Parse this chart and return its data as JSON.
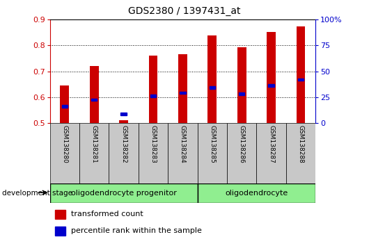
{
  "title": "GDS2380 / 1397431_at",
  "samples": [
    "GSM138280",
    "GSM138281",
    "GSM138282",
    "GSM138283",
    "GSM138284",
    "GSM138285",
    "GSM138286",
    "GSM138287",
    "GSM138288"
  ],
  "bar_tops": [
    0.645,
    0.72,
    0.51,
    0.76,
    0.767,
    0.838,
    0.793,
    0.853,
    0.875
  ],
  "bar_bottom": 0.5,
  "percentile_values": [
    0.565,
    0.59,
    0.535,
    0.605,
    0.617,
    0.638,
    0.613,
    0.645,
    0.668
  ],
  "ylim_left": [
    0.5,
    0.9
  ],
  "ylim_right": [
    0,
    100
  ],
  "yticks_left": [
    0.5,
    0.6,
    0.7,
    0.8,
    0.9
  ],
  "yticks_right": [
    0,
    25,
    50,
    75,
    100
  ],
  "ytick_labels_right": [
    "0",
    "25",
    "50",
    "75",
    "100%"
  ],
  "bar_color": "#CC0000",
  "percentile_color": "#0000CC",
  "grid_ticks": [
    0.6,
    0.7,
    0.8
  ],
  "groups": [
    {
      "label": "oligodendrocyte progenitor",
      "start": 0,
      "end": 5,
      "color": "#90EE90"
    },
    {
      "label": "oligodendrocyte",
      "start": 5,
      "end": 9,
      "color": "#90EE90"
    }
  ],
  "legend_items": [
    {
      "label": "transformed count",
      "color": "#CC0000"
    },
    {
      "label": "percentile rank within the sample",
      "color": "#0000CC"
    }
  ],
  "dev_stage_label": "development stage",
  "sample_area_color": "#C8C8C8",
  "title_color": "#000000",
  "left_axis_color": "#CC0000",
  "right_axis_color": "#0000CC"
}
